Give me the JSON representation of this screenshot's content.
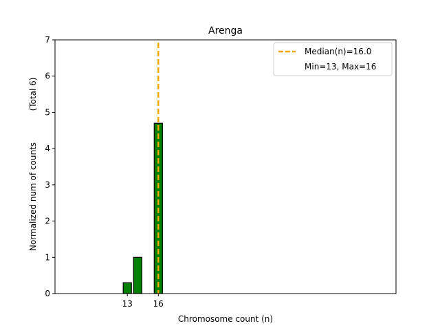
{
  "chart_data": {
    "type": "bar",
    "title": "Arenga",
    "xlabel": "Chromosome count (n)",
    "ylabel": "Normalized num of counts",
    "ylabel_note": "(Total 6)",
    "xlim": [
      6,
      39
    ],
    "ylim": [
      0,
      7
    ],
    "y_ticks": [
      0,
      1,
      2,
      3,
      4,
      5,
      6,
      7
    ],
    "x_ticks": [
      13,
      16
    ],
    "bars": [
      {
        "x": 13,
        "value": 0.3
      },
      {
        "x": 14,
        "value": 1.0
      },
      {
        "x": 16,
        "value": 4.7
      }
    ],
    "bar_color": "#008000",
    "bar_edge_color": "#000000",
    "median_line": {
      "x": 16,
      "color": "#f5a800",
      "style": "dashed"
    },
    "legend": {
      "placement": "top-right",
      "entries": [
        "Median(n)=16.0",
        "Min=13, Max=16"
      ]
    },
    "grid": false
  }
}
